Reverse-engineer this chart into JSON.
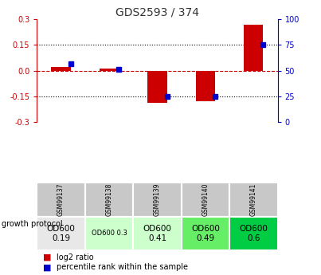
{
  "title": "GDS2593 / 374",
  "samples": [
    "GSM99137",
    "GSM99138",
    "GSM99139",
    "GSM99140",
    "GSM99141"
  ],
  "log2_ratio": [
    0.02,
    0.01,
    -0.19,
    -0.18,
    0.27
  ],
  "percentile_rank": [
    57,
    51,
    25,
    25,
    75
  ],
  "ylim": [
    -0.3,
    0.3
  ],
  "yticks_left": [
    -0.3,
    -0.15,
    0.0,
    0.15,
    0.3
  ],
  "yticks_right": [
    0,
    25,
    50,
    75,
    100
  ],
  "bar_color_red": "#cc0000",
  "bar_color_blue": "#0000cc",
  "dashed_line_color": "#cc0000",
  "dotted_line_color": "#000000",
  "growth_protocol_labels": [
    "OD600\n0.19",
    "OD600 0.3",
    "OD600\n0.41",
    "OD600\n0.49",
    "OD600\n0.6"
  ],
  "growth_protocol_colors": [
    "#e8e8e8",
    "#ccffcc",
    "#ccffcc",
    "#66ee66",
    "#00cc44"
  ],
  "growth_protocol_text_sizes": [
    7.5,
    6,
    7.5,
    7.5,
    7.5
  ],
  "bar_width": 0.4,
  "title_color": "#333333",
  "left_axis_color": "#cc0000",
  "right_axis_color": "#0000cc",
  "sample_row_color": "#c8c8c8",
  "legend_red_label": "log2 ratio",
  "legend_blue_label": "percentile rank within the sample",
  "growth_text": "growth protocol"
}
